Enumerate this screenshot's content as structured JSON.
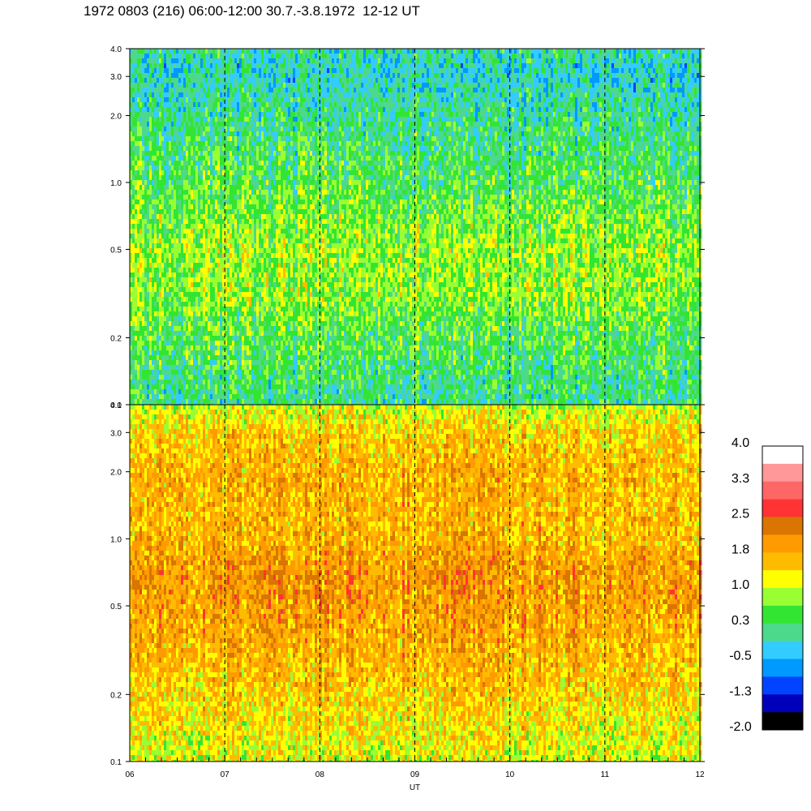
{
  "title": "1972 0803 (216) 06:00-12:00 30.7.-3.8.1972  12-12 UT",
  "chart_data": {
    "type": "heatmap",
    "panels": [
      {
        "name": "upper",
        "y_scale": "log",
        "ylim": [
          0.1,
          4.0
        ],
        "y_ticks": [
          "0.1",
          "0.2",
          "0.5",
          "1.0",
          "2.0",
          "3.0",
          "4.0"
        ],
        "band_levels": [
          {
            "freq": 4.0,
            "level": 0.0
          },
          {
            "freq": 3.0,
            "level": -0.2
          },
          {
            "freq": 2.0,
            "level": 0.1
          },
          {
            "freq": 1.0,
            "level": 0.4
          },
          {
            "freq": 0.5,
            "level": 0.8
          },
          {
            "freq": 0.3,
            "level": 0.7
          },
          {
            "freq": 0.2,
            "level": 0.4
          },
          {
            "freq": 0.1,
            "level": 0.1
          }
        ]
      },
      {
        "name": "lower",
        "y_scale": "log",
        "ylim": [
          0.1,
          4.0
        ],
        "y_ticks": [
          "0.1",
          "0.2",
          "0.5",
          "1.0",
          "2.0",
          "3.0",
          "4.0"
        ],
        "band_levels": [
          {
            "freq": 4.0,
            "level": 1.0
          },
          {
            "freq": 3.0,
            "level": 1.5
          },
          {
            "freq": 2.0,
            "level": 1.7
          },
          {
            "freq": 1.0,
            "level": 1.7
          },
          {
            "freq": 0.7,
            "level": 2.0
          },
          {
            "freq": 0.5,
            "level": 1.9
          },
          {
            "freq": 0.3,
            "level": 1.7
          },
          {
            "freq": 0.2,
            "level": 1.5
          },
          {
            "freq": 0.1,
            "level": 1.1
          }
        ]
      }
    ],
    "x_ticks": [
      "06",
      "07",
      "08",
      "09",
      "10",
      "11",
      "12"
    ],
    "xlim": [
      6,
      12
    ],
    "xlabel": "UT",
    "dashed_hours": [
      7,
      8,
      9,
      10,
      11
    ],
    "colorbar": {
      "labels": [
        "4.0",
        "3.3",
        "2.5",
        "1.8",
        "1.0",
        "0.3",
        "-0.5",
        "-1.3",
        "-2.0"
      ],
      "colors_top_to_bottom": [
        "#ffffff",
        "#ff9999",
        "#ff6666",
        "#ff3333",
        "#d97500",
        "#ff9a00",
        "#ffbb00",
        "#ffff00",
        "#99ff33",
        "#33e533",
        "#4dd98c",
        "#33ccff",
        "#0099ff",
        "#0044ff",
        "#0000bb",
        "#000000"
      ]
    }
  }
}
